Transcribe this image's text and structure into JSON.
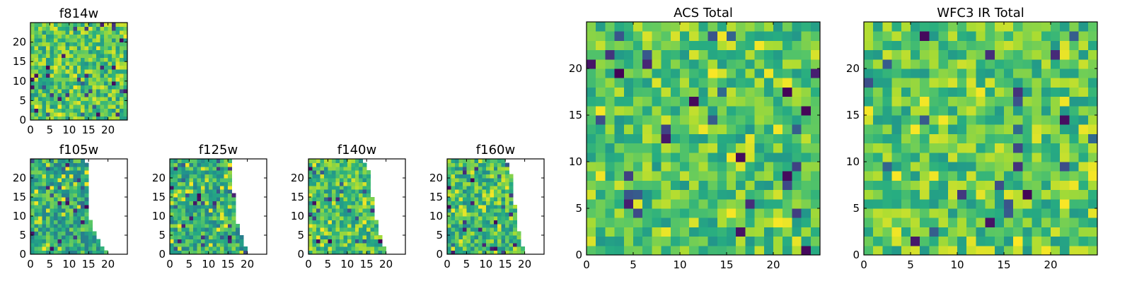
{
  "chart_data": [
    {
      "id": "f814w",
      "type": "heatmap",
      "title": "f814w",
      "xlabel": "",
      "ylabel": "",
      "xlim": [
        0,
        25
      ],
      "ylim": [
        0,
        25
      ],
      "xticks": [
        0,
        5,
        10,
        15,
        20
      ],
      "yticks": [
        0,
        5,
        10,
        15,
        20
      ],
      "grid": false,
      "colormap": "viridis",
      "value_range": [
        0,
        1
      ],
      "nx": 25,
      "ny": 25,
      "coverage_x_max_by_row": [
        25,
        25,
        25,
        25,
        25,
        25,
        25,
        25,
        25,
        25,
        25,
        25,
        25,
        25,
        25,
        25,
        25,
        25,
        25,
        25,
        25,
        25,
        25,
        25,
        25
      ],
      "seed": 814,
      "mean": 0.72,
      "spread": 0.22
    },
    {
      "id": "f105w",
      "type": "heatmap",
      "title": "f105w",
      "xlabel": "",
      "ylabel": "",
      "xlim": [
        0,
        25
      ],
      "ylim": [
        0,
        25
      ],
      "xticks": [
        0,
        5,
        10,
        15,
        20
      ],
      "yticks": [
        0,
        5,
        10,
        15,
        20
      ],
      "grid": false,
      "colormap": "viridis",
      "value_range": [
        0,
        1
      ],
      "nx": 25,
      "ny": 25,
      "coverage_x_max_by_row": [
        20,
        19,
        18,
        18,
        17,
        17,
        16,
        16,
        16,
        15,
        15,
        15,
        15,
        15,
        15,
        15,
        15,
        15,
        15,
        15,
        15,
        15,
        15,
        15,
        14
      ],
      "seed": 105,
      "mean": 0.62,
      "spread": 0.22
    },
    {
      "id": "f125w",
      "type": "heatmap",
      "title": "f125w",
      "xlabel": "",
      "ylabel": "",
      "xlim": [
        0,
        25
      ],
      "ylim": [
        0,
        25
      ],
      "xticks": [
        0,
        5,
        10,
        15,
        20
      ],
      "yticks": [
        0,
        5,
        10,
        15,
        20
      ],
      "grid": false,
      "colormap": "viridis",
      "value_range": [
        0,
        1
      ],
      "nx": 25,
      "ny": 25,
      "coverage_x_max_by_row": [
        20,
        20,
        19,
        19,
        19,
        18,
        18,
        18,
        17,
        17,
        17,
        17,
        17,
        17,
        17,
        17,
        16,
        16,
        16,
        16,
        16,
        16,
        16,
        16,
        16
      ],
      "seed": 125,
      "mean": 0.63,
      "spread": 0.22
    },
    {
      "id": "f140w",
      "type": "heatmap",
      "title": "f140w",
      "xlabel": "",
      "ylabel": "",
      "xlim": [
        0,
        25
      ],
      "ylim": [
        0,
        25
      ],
      "xticks": [
        0,
        5,
        10,
        15,
        20
      ],
      "yticks": [
        0,
        5,
        10,
        15,
        20
      ],
      "grid": false,
      "colormap": "viridis",
      "value_range": [
        0,
        1
      ],
      "nx": 25,
      "ny": 25,
      "coverage_x_max_by_row": [
        20,
        20,
        19,
        19,
        19,
        18,
        18,
        18,
        18,
        17,
        17,
        17,
        17,
        17,
        17,
        16,
        16,
        16,
        16,
        16,
        16,
        16,
        15,
        15,
        14
      ],
      "seed": 140,
      "mean": 0.7,
      "spread": 0.22
    },
    {
      "id": "f160w",
      "type": "heatmap",
      "title": "f160w",
      "xlabel": "",
      "ylabel": "",
      "xlim": [
        0,
        25
      ],
      "ylim": [
        0,
        25
      ],
      "xticks": [
        0,
        5,
        10,
        15,
        20
      ],
      "yticks": [
        0,
        5,
        10,
        15,
        20
      ],
      "grid": false,
      "colormap": "viridis",
      "value_range": [
        0,
        1
      ],
      "nx": 25,
      "ny": 25,
      "coverage_x_max_by_row": [
        20,
        20,
        19,
        19,
        19,
        19,
        18,
        18,
        18,
        18,
        18,
        18,
        18,
        17,
        17,
        17,
        17,
        17,
        17,
        17,
        17,
        16,
        16,
        16,
        15
      ],
      "seed": 160,
      "mean": 0.68,
      "spread": 0.22
    },
    {
      "id": "acs-total",
      "type": "heatmap",
      "title": "ACS Total",
      "xlabel": "",
      "ylabel": "",
      "xlim": [
        0,
        25
      ],
      "ylim": [
        0,
        25
      ],
      "xticks": [
        0,
        5,
        10,
        15,
        20
      ],
      "yticks": [
        0,
        5,
        10,
        15,
        20
      ],
      "grid": false,
      "colormap": "viridis",
      "value_range": [
        0,
        1
      ],
      "nx": 25,
      "ny": 25,
      "coverage_x_max_by_row": [
        25,
        25,
        25,
        25,
        25,
        25,
        25,
        25,
        25,
        25,
        25,
        25,
        25,
        25,
        25,
        25,
        25,
        25,
        25,
        25,
        25,
        25,
        25,
        25,
        25
      ],
      "seed": 777,
      "mean": 0.72,
      "spread": 0.2
    },
    {
      "id": "wfc3-ir-total",
      "type": "heatmap",
      "title": "WFC3 IR Total",
      "xlabel": "",
      "ylabel": "",
      "xlim": [
        0,
        25
      ],
      "ylim": [
        0,
        25
      ],
      "xticks": [
        0,
        5,
        10,
        15,
        20
      ],
      "yticks": [
        0,
        5,
        10,
        15,
        20
      ],
      "grid": false,
      "colormap": "viridis",
      "value_range": [
        0,
        1
      ],
      "nx": 25,
      "ny": 25,
      "coverage_x_max_by_row": [
        25,
        25,
        25,
        25,
        25,
        25,
        25,
        25,
        25,
        25,
        25,
        25,
        25,
        25,
        25,
        25,
        25,
        25,
        25,
        25,
        25,
        25,
        25,
        25,
        25
      ],
      "seed": 3141,
      "mean": 0.73,
      "spread": 0.2
    }
  ]
}
